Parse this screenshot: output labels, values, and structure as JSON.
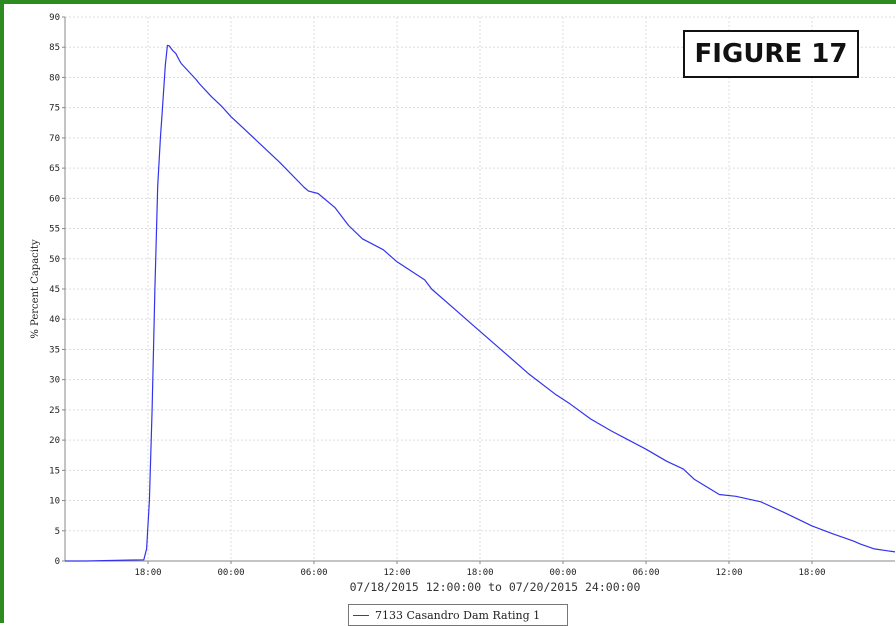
{
  "chart_data": {
    "type": "line",
    "figure_label": "FIGURE 17",
    "ylabel": "% Percent Capacity",
    "xlabel": "07/18/2015 12:00:00 to 07/20/2015 24:00:00",
    "ylim": [
      0,
      90
    ],
    "yticks": [
      0,
      5,
      10,
      15,
      20,
      25,
      30,
      35,
      40,
      45,
      50,
      55,
      60,
      65,
      70,
      75,
      80,
      85,
      90
    ],
    "xlim": [
      0,
      60
    ],
    "xticks": [
      {
        "t": 6,
        "label": "18:00"
      },
      {
        "t": 12,
        "label": "00:00"
      },
      {
        "t": 18,
        "label": "06:00"
      },
      {
        "t": 24,
        "label": "12:00"
      },
      {
        "t": 30,
        "label": "18:00"
      },
      {
        "t": 36,
        "label": "00:00"
      },
      {
        "t": 42,
        "label": "06:00"
      },
      {
        "t": 48,
        "label": "12:00"
      },
      {
        "t": 54,
        "label": "18:00"
      }
    ],
    "x_units": "hours since 07/18/2015 12:00:00",
    "grid": true,
    "legend_position": "bottom-center",
    "series": [
      {
        "name": "7133 Casandro Dam Rating 1",
        "color": "#3333ee",
        "x": [
          0,
          1.5,
          5.7,
          5.9,
          6.1,
          6.3,
          6.5,
          6.7,
          6.9,
          7.05,
          7.25,
          7.4,
          7.55,
          7.7,
          7.8,
          8.0,
          8.3,
          8.4,
          9.5,
          9.7,
          10.6,
          11.3,
          12.0,
          12.9,
          15.5,
          17.3,
          17.6,
          18.3,
          19.5,
          20.5,
          21.5,
          23.0,
          24.0,
          26.0,
          26.5,
          28.0,
          29.5,
          31.5,
          33.5,
          35.5,
          36.5,
          38.0,
          39.5,
          40.5,
          42.0,
          43.5,
          44.7,
          45.5,
          47.3,
          48.5,
          50.3,
          52.0,
          54.0,
          55.5,
          57.0,
          57.5,
          58.5,
          60.0
        ],
        "values": [
          0,
          0,
          0.2,
          2,
          10,
          25,
          45,
          62,
          70,
          75,
          82,
          85.3,
          85.2,
          84.7,
          84.4,
          84.0,
          82.7,
          82.3,
          79.6,
          79.0,
          76.8,
          75.3,
          73.5,
          71.6,
          66.0,
          61.8,
          61.2,
          60.8,
          58.5,
          55.5,
          53.3,
          51.5,
          49.5,
          46.5,
          45.0,
          42.0,
          39.0,
          35.0,
          31.0,
          27.5,
          26.0,
          23.5,
          21.5,
          20.3,
          18.5,
          16.5,
          15.2,
          13.5,
          11.0,
          10.7,
          9.8,
          8.0,
          5.8,
          4.5,
          3.3,
          2.8,
          2.0,
          1.5
        ]
      }
    ]
  }
}
